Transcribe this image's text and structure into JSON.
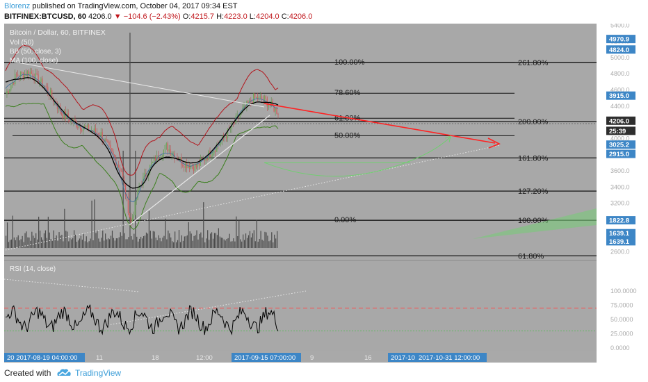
{
  "header": {
    "author": "Blorenz",
    "published": "published on TradingView.com, October 04, 2017 09:34 EST",
    "symbol": "BITFINEX:BTCUSD, 60",
    "last": "4206.0",
    "change": "−104.6 (−2.43%)",
    "o_label": "O:",
    "o_value": "4215.7",
    "h_label": "H:",
    "h_value": "4223.0",
    "l_label": "L:",
    "l_value": "4204.0",
    "c_label": "C:",
    "c_value": "4206.0"
  },
  "chart_data": {
    "type": "candlestick",
    "title": "Bitcoin / Dollar, 60, BITFINEX",
    "indicators": [
      "Vol (50)",
      "BB (50, close, 3)",
      "MA (100, close)"
    ],
    "y_ticks": [
      "5400.0",
      "5200.0",
      "5000.0",
      "4800.0",
      "4600.0",
      "4400.0",
      "4200.0",
      "4000.0",
      "3800.0",
      "3600.0",
      "3400.0",
      "3200.0",
      "3000.0",
      "2800.0",
      "2600.0"
    ],
    "ylim": [
      2600,
      5500
    ],
    "fib_levels": [
      {
        "label": "100.00%",
        "price": 4940
      },
      {
        "label": "78.60%",
        "price": 4560
      },
      {
        "label": "61.80%",
        "price": 4250
      },
      {
        "label": "50.00%",
        "price": 4035
      },
      {
        "label": "0.00%",
        "price": 2990
      }
    ],
    "fib_extensions": [
      {
        "label": "261.80%",
        "price": 4940
      },
      {
        "label": "200.00%",
        "price": 4210
      },
      {
        "label": "161.80%",
        "price": 3760
      },
      {
        "label": "127.20%",
        "price": 3350
      },
      {
        "label": "100.00%",
        "price": 2990
      },
      {
        "label": "61.80%",
        "price": 2550
      }
    ],
    "price_badges": [
      {
        "label": "4970.9",
        "price": 5230
      },
      {
        "label": "4824.0",
        "price": 5100
      },
      {
        "label": "3915.0",
        "price": 4530
      },
      {
        "label": "4206.0",
        "price": 4220,
        "style": "last"
      },
      {
        "label": "25:39",
        "price": 4095,
        "style": "last"
      },
      {
        "label": "3025.2",
        "price": 3925
      },
      {
        "label": "2915.0",
        "price": 3810
      },
      {
        "label": "1822.8",
        "price": 2990
      },
      {
        "label": "1639.1",
        "price": 2830
      },
      {
        "label": "1639.1",
        "price": 2730
      }
    ],
    "rsi": {
      "title": "RSI (14, close)",
      "ticks": [
        "100.0000",
        "75.0000",
        "50.0000",
        "25.0000",
        "0.0000"
      ],
      "overbought": 70,
      "oversold": 30
    },
    "x_ticks": [
      "11",
      "18",
      "12:00",
      "9",
      "16"
    ],
    "x_badges": [
      "20 2017-08-19 04:00:00",
      "2017-09-15 07:00:00",
      "2017-10",
      "2017-10-31 12:00:00"
    ]
  },
  "footer": {
    "created_with": "Created with",
    "brand": "TradingView"
  },
  "colors": {
    "background": "#a8a8a8",
    "axis": "#a9a9a9",
    "accent": "#3d9ed8",
    "badge": "#3d86c6",
    "bb_upper": "#b3151c",
    "bb_lower": "#3b7f1d",
    "ma": "#000000",
    "arrow": "#ff2222"
  }
}
